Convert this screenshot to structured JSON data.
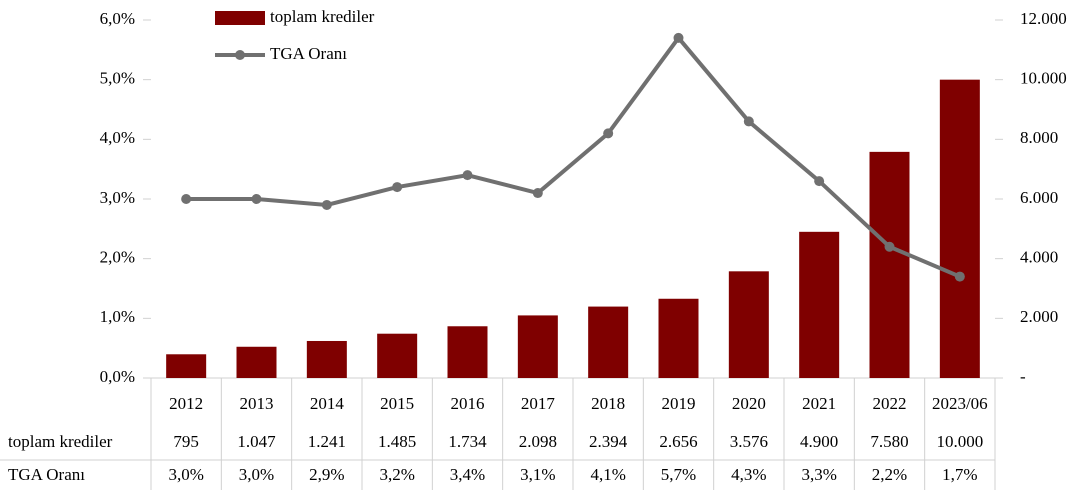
{
  "chart_data": {
    "type": "bar",
    "categories": [
      "2012",
      "2013",
      "2014",
      "2015",
      "2016",
      "2017",
      "2018",
      "2019",
      "2020",
      "2021",
      "2022",
      "2023/06"
    ],
    "series": [
      {
        "name": "toplam krediler",
        "type": "bar",
        "axis": "y2",
        "color": "#7f0000",
        "values": [
          795,
          1047,
          1241,
          1485,
          1734,
          2098,
          2394,
          2656,
          3576,
          4900,
          7580,
          10000
        ],
        "value_labels": [
          "795",
          "1.047",
          "1.241",
          "1.485",
          "1.734",
          "2.098",
          "2.394",
          "2.656",
          "3.576",
          "4.900",
          "7.580",
          "10.000"
        ]
      },
      {
        "name": "TGA Oranı",
        "type": "line",
        "axis": "y",
        "color": "#707070",
        "values": [
          3.0,
          3.0,
          2.9,
          3.2,
          3.4,
          3.1,
          4.1,
          5.7,
          4.3,
          3.3,
          2.2,
          1.7
        ],
        "value_labels": [
          "3,0%",
          "3,0%",
          "2,9%",
          "3,2%",
          "3,4%",
          "3,1%",
          "4,1%",
          "5,7%",
          "4,3%",
          "3,3%",
          "2,2%",
          "1,7%"
        ]
      }
    ],
    "ylim": [
      0,
      6
    ],
    "yticks": [
      {
        "value": 0,
        "label": "0,0%"
      },
      {
        "value": 1,
        "label": "1,0%"
      },
      {
        "value": 2,
        "label": "2,0%"
      },
      {
        "value": 3,
        "label": "3,0%"
      },
      {
        "value": 4,
        "label": "4,0%"
      },
      {
        "value": 5,
        "label": "5,0%"
      },
      {
        "value": 6,
        "label": "6,0%"
      }
    ],
    "y2lim": [
      0,
      12000
    ],
    "y2ticks": [
      {
        "value": 0,
        "label": "-"
      },
      {
        "value": 2000,
        "label": "2.000"
      },
      {
        "value": 4000,
        "label": "4.000"
      },
      {
        "value": 6000,
        "label": "6.000"
      },
      {
        "value": 8000,
        "label": "8.000"
      },
      {
        "value": 10000,
        "label": "10.000"
      },
      {
        "value": 12000,
        "label": "12.000"
      }
    ],
    "legend": "top"
  }
}
